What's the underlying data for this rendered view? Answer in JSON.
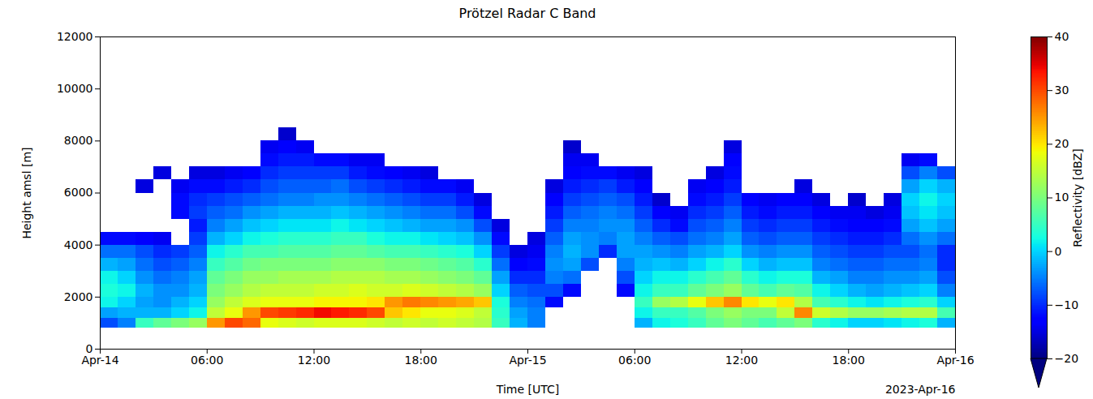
{
  "chart_data": {
    "type": "heatmap",
    "title": "Prötzel Radar C Band",
    "x_label": "Time [UTC]",
    "y_label": "Height amsl [m]",
    "annotations": [
      "2023-Apr-16"
    ],
    "grid": false,
    "xlim": [
      "2023-04-14T00:00Z",
      "2023-04-16T00:00Z"
    ],
    "xticks": [
      {
        "value": "2023-04-14T00:00Z",
        "label": "Apr-14"
      },
      {
        "value": "2023-04-14T06:00Z",
        "label": "06:00"
      },
      {
        "value": "2023-04-14T12:00Z",
        "label": "12:00"
      },
      {
        "value": "2023-04-14T18:00Z",
        "label": "18:00"
      },
      {
        "value": "2023-04-15T00:00Z",
        "label": "Apr-15"
      },
      {
        "value": "2023-04-15T06:00Z",
        "label": "06:00"
      },
      {
        "value": "2023-04-15T12:00Z",
        "label": "12:00"
      },
      {
        "value": "2023-04-15T18:00Z",
        "label": "18:00"
      },
      {
        "value": "2023-04-16T00:00Z",
        "label": "Apr-16"
      }
    ],
    "ylim": [
      0,
      12000
    ],
    "yticks": [
      0,
      2000,
      4000,
      6000,
      8000,
      10000,
      12000
    ],
    "time_bins": [
      "2023-04-14T00:00Z",
      "2023-04-14T01:00Z",
      "2023-04-14T02:00Z",
      "2023-04-14T03:00Z",
      "2023-04-14T04:00Z",
      "2023-04-14T05:00Z",
      "2023-04-14T06:00Z",
      "2023-04-14T07:00Z",
      "2023-04-14T08:00Z",
      "2023-04-14T09:00Z",
      "2023-04-14T10:00Z",
      "2023-04-14T11:00Z",
      "2023-04-14T12:00Z",
      "2023-04-14T13:00Z",
      "2023-04-14T14:00Z",
      "2023-04-14T15:00Z",
      "2023-04-14T16:00Z",
      "2023-04-14T17:00Z",
      "2023-04-14T18:00Z",
      "2023-04-14T19:00Z",
      "2023-04-14T20:00Z",
      "2023-04-14T21:00Z",
      "2023-04-14T22:00Z",
      "2023-04-14T23:00Z",
      "2023-04-15T00:00Z",
      "2023-04-15T01:00Z",
      "2023-04-15T02:00Z",
      "2023-04-15T03:00Z",
      "2023-04-15T04:00Z",
      "2023-04-15T05:00Z",
      "2023-04-15T06:00Z",
      "2023-04-15T07:00Z",
      "2023-04-15T08:00Z",
      "2023-04-15T09:00Z",
      "2023-04-15T10:00Z",
      "2023-04-15T11:00Z",
      "2023-04-15T12:00Z",
      "2023-04-15T13:00Z",
      "2023-04-15T14:00Z",
      "2023-04-15T15:00Z",
      "2023-04-15T16:00Z",
      "2023-04-15T17:00Z",
      "2023-04-15T18:00Z",
      "2023-04-15T19:00Z",
      "2023-04-15T20:00Z",
      "2023-04-15T21:00Z",
      "2023-04-15T22:00Z",
      "2023-04-15T23:00Z",
      "2023-04-16T00:00Z"
    ],
    "height_bins": [
      800,
      1200,
      1600,
      2000,
      2500,
      3000,
      3500,
      4000,
      4500,
      5000,
      5500,
      6000,
      6500,
      7000,
      7500,
      8000,
      8500,
      9000
    ],
    "reflectivity": [
      [
        -8,
        -3,
        2,
        3,
        2,
        -2,
        -6,
        -12,
        null,
        null,
        null,
        null,
        null,
        null,
        null,
        null,
        null
      ],
      [
        -5,
        -2,
        0,
        2,
        0,
        -3,
        -6,
        -12,
        null,
        null,
        null,
        null,
        null,
        null,
        null,
        null,
        null
      ],
      [
        5,
        -2,
        -3,
        -2,
        -4,
        -6,
        -8,
        -13,
        null,
        null,
        null,
        -15,
        null,
        null,
        null,
        null,
        null
      ],
      [
        8,
        -2,
        -4,
        -4,
        -6,
        -8,
        -10,
        -14,
        null,
        null,
        null,
        null,
        -15,
        null,
        null,
        null,
        null
      ],
      [
        10,
        0,
        -2,
        -4,
        -5,
        -7,
        -9,
        null,
        null,
        -12,
        -12,
        -14,
        null,
        null,
        null,
        null,
        null
      ],
      [
        12,
        2,
        0,
        -2,
        -3,
        -5,
        -7,
        -9,
        -11,
        -9,
        -10,
        -12,
        -15,
        null,
        null,
        null,
        null
      ],
      [
        25,
        15,
        12,
        10,
        8,
        5,
        2,
        -2,
        -5,
        -7,
        -9,
        -12,
        -15,
        null,
        null,
        null,
        null
      ],
      [
        30,
        18,
        15,
        12,
        10,
        7,
        4,
        0,
        -3,
        -6,
        -8,
        -11,
        -14,
        null,
        null,
        null,
        null
      ],
      [
        28,
        25,
        17,
        14,
        12,
        9,
        6,
        2,
        -1,
        -4,
        -7,
        -10,
        -13,
        null,
        null,
        null,
        null
      ],
      [
        18,
        30,
        18,
        15,
        12,
        10,
        6,
        3,
        0,
        -3,
        -6,
        -8,
        -10,
        -12,
        -14,
        null,
        null
      ],
      [
        17,
        31,
        18,
        15,
        13,
        10,
        7,
        4,
        1,
        -2,
        -5,
        -7,
        -9,
        -11,
        -13,
        -16,
        null
      ],
      [
        16,
        32,
        18,
        15,
        13,
        10,
        7,
        4,
        1,
        -2,
        -5,
        -7,
        -9,
        -11,
        -14,
        null,
        null
      ],
      [
        17,
        34,
        19,
        16,
        13,
        10,
        7,
        4,
        1,
        -2,
        -4,
        -7,
        -9,
        -12,
        null,
        null,
        null
      ],
      [
        17,
        33,
        19,
        16,
        14,
        11,
        8,
        5,
        2,
        -1,
        -4,
        -6,
        -9,
        -12,
        null,
        null,
        null
      ],
      [
        17,
        32,
        19,
        17,
        14,
        11,
        8,
        5,
        1,
        -2,
        -5,
        -8,
        -11,
        -14,
        null,
        null,
        null
      ],
      [
        16,
        30,
        20,
        16,
        14,
        11,
        7,
        3,
        0,
        -3,
        -6,
        -9,
        -12,
        -14,
        null,
        null,
        null
      ],
      [
        15,
        22,
        25,
        16,
        13,
        10,
        6,
        2,
        -1,
        -4,
        -7,
        -10,
        -13,
        null,
        null,
        null,
        null
      ],
      [
        16,
        20,
        27,
        17,
        13,
        10,
        6,
        2,
        -2,
        -5,
        -8,
        -11,
        -14,
        null,
        null,
        null,
        null
      ],
      [
        15,
        18,
        26,
        16,
        12,
        9,
        5,
        1,
        -3,
        -6,
        -9,
        -12,
        -15,
        null,
        null,
        null,
        null
      ],
      [
        16,
        18,
        25,
        15,
        11,
        8,
        4,
        0,
        -3,
        -6,
        -9,
        -12,
        null,
        null,
        null,
        null,
        null
      ],
      [
        15,
        17,
        24,
        14,
        10,
        7,
        3,
        -1,
        -4,
        -8,
        -11,
        -14,
        null,
        null,
        null,
        null,
        null
      ],
      [
        14,
        15,
        22,
        12,
        8,
        4,
        0,
        -4,
        -8,
        -12,
        -15,
        null,
        null,
        null,
        null,
        null,
        null
      ],
      [
        5,
        4,
        3,
        0,
        -3,
        -6,
        -9,
        -12,
        -15,
        null,
        null,
        null,
        null,
        null,
        null,
        null,
        null
      ],
      [
        -2,
        -3,
        -5,
        -7,
        -10,
        -13,
        -15,
        null,
        null,
        null,
        null,
        null,
        null,
        null,
        null,
        null,
        null
      ],
      [
        -5,
        -5,
        -6,
        -8,
        -10,
        -12,
        -14,
        -15,
        null,
        null,
        null,
        null,
        null,
        null,
        null,
        null,
        null
      ],
      [
        null,
        null,
        -12,
        -8,
        -5,
        -4,
        -5,
        -7,
        -9,
        -11,
        -13,
        -15,
        null,
        null,
        null,
        null,
        null
      ],
      [
        null,
        null,
        null,
        -12,
        -6,
        -3,
        -2,
        -3,
        -5,
        -7,
        -9,
        -11,
        -13,
        -14,
        -16,
        null,
        null
      ],
      [
        null,
        null,
        null,
        null,
        null,
        -8,
        -4,
        -4,
        -5,
        -6,
        -8,
        -10,
        -12,
        -14,
        null,
        null,
        null
      ],
      [
        null,
        null,
        null,
        null,
        null,
        null,
        -10,
        -5,
        -4,
        -5,
        -7,
        -9,
        -12,
        null,
        null,
        null,
        null
      ],
      [
        null,
        null,
        null,
        -12,
        -8,
        -5,
        -3,
        -3,
        -4,
        -6,
        -8,
        -11,
        -14,
        null,
        null,
        null,
        null
      ],
      [
        -2,
        2,
        5,
        2,
        0,
        -2,
        -3,
        -5,
        -7,
        -9,
        -11,
        -13,
        -15,
        null,
        null,
        null,
        null
      ],
      [
        2,
        5,
        12,
        5,
        2,
        -1,
        -4,
        -7,
        -10,
        -13,
        -16,
        null,
        null,
        null,
        null,
        null,
        null
      ],
      [
        3,
        5,
        14,
        5,
        2,
        -2,
        -5,
        -8,
        -12,
        -14,
        null,
        null,
        null,
        null,
        null,
        null,
        null
      ],
      [
        5,
        7,
        18,
        8,
        4,
        0,
        -3,
        -6,
        -8,
        -10,
        -12,
        -14,
        null,
        null,
        null,
        null,
        null
      ],
      [
        8,
        10,
        22,
        10,
        6,
        2,
        -2,
        -5,
        -7,
        -9,
        -11,
        -13,
        -15,
        null,
        null,
        null,
        null
      ],
      [
        10,
        12,
        26,
        12,
        8,
        4,
        0,
        -3,
        -5,
        -7,
        -9,
        -11,
        -12,
        -13,
        -15,
        null,
        null
      ],
      [
        8,
        10,
        20,
        8,
        4,
        0,
        -4,
        -7,
        -9,
        -11,
        -13,
        null,
        null,
        null,
        null,
        null,
        null
      ],
      [
        6,
        10,
        18,
        6,
        2,
        -2,
        -5,
        -8,
        -10,
        -12,
        -14,
        null,
        null,
        null,
        null,
        null,
        null
      ],
      [
        8,
        15,
        20,
        8,
        3,
        -1,
        -4,
        -7,
        -9,
        -11,
        -13,
        null,
        null,
        null,
        null,
        null,
        null
      ],
      [
        10,
        26,
        14,
        7,
        3,
        -1,
        -4,
        -7,
        -9,
        -11,
        -13,
        -15,
        null,
        null,
        null,
        null,
        null
      ],
      [
        4,
        16,
        6,
        2,
        -2,
        -5,
        -7,
        -9,
        -11,
        -13,
        -15,
        null,
        null,
        null,
        null,
        null,
        null
      ],
      [
        2,
        14,
        4,
        0,
        -3,
        -6,
        -8,
        -10,
        -12,
        -14,
        null,
        null,
        null,
        null,
        null,
        null,
        null
      ],
      [
        0,
        12,
        2,
        -2,
        -5,
        -7,
        -9,
        -11,
        -13,
        -14,
        -16,
        null,
        null,
        null,
        null,
        null,
        null
      ],
      [
        0,
        12,
        1,
        -3,
        -5,
        -7,
        -9,
        -11,
        -13,
        -15,
        null,
        null,
        null,
        null,
        null,
        null,
        null
      ],
      [
        1,
        13,
        2,
        -2,
        -4,
        -6,
        -8,
        -10,
        -12,
        -14,
        -15,
        null,
        null,
        null,
        null,
        null,
        null
      ],
      [
        2,
        14,
        3,
        -1,
        -4,
        -6,
        -8,
        -6,
        -3,
        -1,
        0,
        -3,
        -8,
        -14,
        null,
        null,
        null
      ],
      [
        3,
        14,
        4,
        0,
        -3,
        -5,
        -6,
        -4,
        -1,
        1,
        2,
        0,
        -5,
        -12,
        null,
        null,
        null
      ],
      [
        -2,
        6,
        0,
        -5,
        -8,
        -10,
        -10,
        -6,
        -3,
        -1,
        0,
        -2,
        -8,
        null,
        null,
        null,
        null
      ]
    ],
    "colorbar": {
      "label": "Reflectivity [dBZ]",
      "range": [
        -20,
        40
      ],
      "ticks": [
        -20,
        -10,
        0,
        10,
        20,
        30,
        40
      ]
    }
  }
}
